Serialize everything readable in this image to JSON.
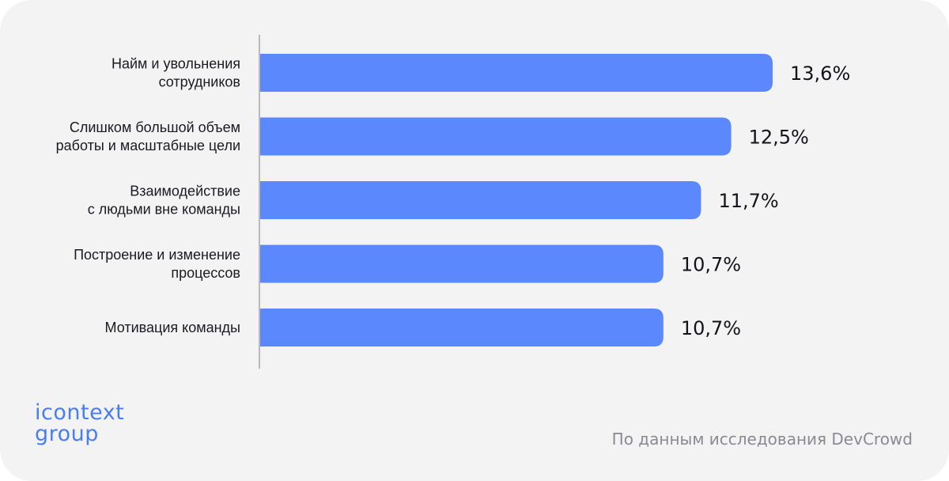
{
  "chart_data": {
    "type": "bar",
    "orientation": "horizontal",
    "categories": [
      [
        "Найм и увольнения",
        "сотрудников"
      ],
      [
        "Слишком большой объем",
        "работы и масштабные цели"
      ],
      [
        "Взаимодействие",
        "с людьми вне команды"
      ],
      [
        "Построение и изменение",
        "процессов"
      ],
      [
        "Мотивация команды"
      ]
    ],
    "values": [
      13.6,
      12.5,
      11.7,
      10.7,
      10.7
    ],
    "value_labels": [
      "13,6%",
      "12,5%",
      "11,7%",
      "10,7%",
      "10,7%"
    ],
    "title": "",
    "xlabel": "",
    "ylabel": "",
    "xlim": [
      0,
      13.6
    ],
    "grid": false,
    "legend": "none",
    "bar_color": "#5b89fd",
    "axis_color": "#b9b9be"
  },
  "branding": {
    "logo_line1": "icontext",
    "logo_line2": "group",
    "logo_color": "#4a7df0"
  },
  "footer": {
    "source_text": "По данным исследования DevCrowd"
  }
}
